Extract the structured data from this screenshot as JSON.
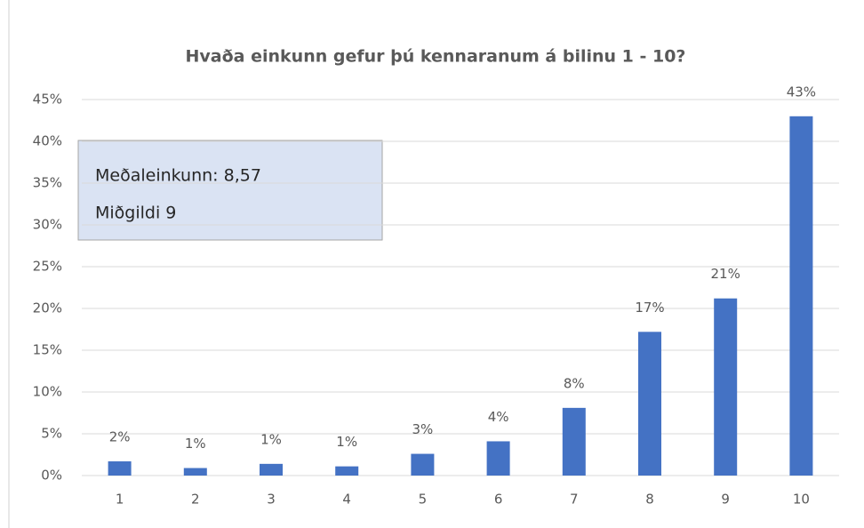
{
  "chart_data": {
    "type": "bar",
    "title": "Hvaða einkunn gefur þú kennaranum á bilinu 1 - 10?",
    "annotations": [
      "Meðaleinkunn: 8,57",
      "Miðgildi 9"
    ],
    "categories": [
      "1",
      "2",
      "3",
      "4",
      "5",
      "6",
      "7",
      "8",
      "9",
      "10"
    ],
    "values": [
      1.7,
      0.9,
      1.4,
      1.1,
      2.6,
      4.1,
      8.1,
      17.2,
      21.2,
      43
    ],
    "value_labels": [
      "2%",
      "1%",
      "1%",
      "1%",
      "3%",
      "4%",
      "8%",
      "17%",
      "21%",
      "43%"
    ],
    "color": "#4472c4",
    "ylim": [
      0,
      45
    ],
    "yticks": [
      {
        "value": 0,
        "label": "0%"
      },
      {
        "value": 5,
        "label": "5%"
      },
      {
        "value": 10,
        "label": "10%"
      },
      {
        "value": 15,
        "label": "15%"
      },
      {
        "value": 20,
        "label": "20%"
      },
      {
        "value": 25,
        "label": "25%"
      },
      {
        "value": 30,
        "label": "30%"
      },
      {
        "value": 35,
        "label": "35%"
      },
      {
        "value": 40,
        "label": "40%"
      },
      {
        "value": 45,
        "label": "45%"
      }
    ],
    "grid": true
  }
}
